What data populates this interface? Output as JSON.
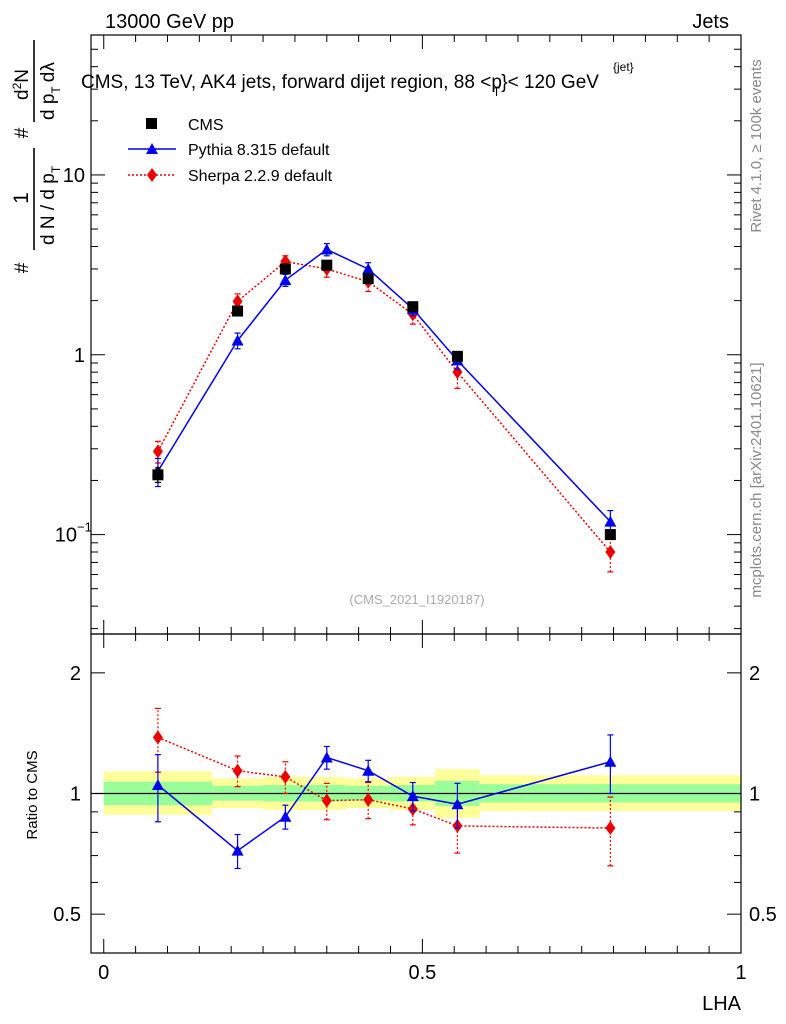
{
  "header": {
    "left": "13000 GeV pp",
    "right": "Jets"
  },
  "side_labels": {
    "rivet": "Rivet 4.1.0, ≥ 100k events",
    "mcplots": "mcplots.cern.ch [arXiv:2401.10621]"
  },
  "chart_data": [
    {
      "type": "line",
      "panel": "main",
      "title": "CMS, 13 TeV, AK4 jets, forward dijet region, 88 < p_T^{jet} < 120 GeV",
      "title_parts": {
        "before": "CMS, 13 TeV, AK4 jets, forward dijet region, 88 <p",
        "sub": "T",
        "sup": "{jet}",
        "after": "}< 120 GeV"
      },
      "ylabel": "1/(dN/dp_T) d²N/(dp_T dλ)",
      "ylabel_parts": {
        "num1": "1",
        "den1": "d N / d p",
        "den1_sub": "T",
        "num2": "d",
        "num2_sup": "2",
        "num2_rest": "N",
        "den2": "d p",
        "den2_sub": "T",
        "den2_rest": "dλ",
        "hash": "#"
      },
      "yscale": "log",
      "ylim": [
        0.028,
        60
      ],
      "xlim": [
        -0.02,
        1.0
      ],
      "ytick_labels": [
        {
          "value": 0.1,
          "base": "10",
          "exp": "−1"
        },
        {
          "value": 1,
          "base": "1",
          "exp": ""
        },
        {
          "value": 10,
          "base": "10",
          "exp": ""
        }
      ],
      "legend": [
        {
          "name": "CMS",
          "marker": "square",
          "color": "#000000",
          "linestyle": "none"
        },
        {
          "name": "Pythia 8.315 default",
          "marker": "triangle",
          "color": "#0000ee",
          "linestyle": "solid"
        },
        {
          "name": "Sherpa 2.2.9 default",
          "marker": "diamond",
          "color": "#ee0000",
          "linestyle": "dotted"
        }
      ],
      "watermark": "(CMS_2021_I1920187)",
      "series": [
        {
          "name": "CMS",
          "x": [
            0.085,
            0.21,
            0.285,
            0.35,
            0.415,
            0.485,
            0.555,
            0.795
          ],
          "y": [
            0.215,
            1.75,
            3.0,
            3.15,
            2.65,
            1.85,
            0.98,
            0.1
          ],
          "err": [
            0.02,
            0.08,
            0.1,
            0.1,
            0.1,
            0.08,
            0.05,
            0.006
          ]
        },
        {
          "name": "Pythia 8.315 default",
          "x": [
            0.085,
            0.21,
            0.285,
            0.35,
            0.415,
            0.485,
            0.555,
            0.795
          ],
          "y": [
            0.225,
            1.2,
            2.6,
            3.85,
            3.0,
            1.8,
            0.93,
            0.118
          ],
          "err": [
            0.04,
            0.12,
            0.2,
            0.3,
            0.25,
            0.15,
            0.1,
            0.018
          ]
        },
        {
          "name": "Sherpa 2.2.9 default",
          "x": [
            0.085,
            0.21,
            0.285,
            0.35,
            0.415,
            0.485,
            0.555,
            0.795
          ],
          "y": [
            0.29,
            1.98,
            3.3,
            3.0,
            2.55,
            1.68,
            0.8,
            0.08
          ],
          "err": [
            0.04,
            0.2,
            0.25,
            0.3,
            0.3,
            0.2,
            0.15,
            0.018
          ]
        }
      ]
    },
    {
      "type": "line",
      "panel": "ratio",
      "ylabel": "Ratio to CMS",
      "xlabel": "LHA",
      "yscale": "log",
      "ylim": [
        0.4,
        2.5
      ],
      "xlim": [
        -0.02,
        1.0
      ],
      "yticks": [
        0.5,
        1,
        2
      ],
      "ytick_labels": [
        "0.5",
        "1",
        "2"
      ],
      "xticks": [
        0,
        0.5,
        1
      ],
      "xtick_labels": [
        "0",
        "0.5",
        "1"
      ],
      "bands": {
        "edges": [
          0.0,
          0.17,
          0.25,
          0.32,
          0.38,
          0.45,
          0.52,
          0.59,
          1.0
        ],
        "green": [
          [
            0.935,
            1.07
          ],
          [
            0.96,
            1.045
          ],
          [
            0.955,
            1.05
          ],
          [
            0.955,
            1.05
          ],
          [
            0.96,
            1.045
          ],
          [
            0.955,
            1.05
          ],
          [
            0.93,
            1.075
          ],
          [
            0.95,
            1.055
          ]
        ],
        "yellow": [
          [
            0.885,
            1.135
          ],
          [
            0.92,
            1.09
          ],
          [
            0.91,
            1.1
          ],
          [
            0.91,
            1.1
          ],
          [
            0.92,
            1.09
          ],
          [
            0.91,
            1.1
          ],
          [
            0.87,
            1.15
          ],
          [
            0.905,
            1.11
          ]
        ],
        "green_color": "#99ff99",
        "yellow_color": "#ffff99"
      },
      "series": [
        {
          "name": "Pythia 8.315 default",
          "x": [
            0.085,
            0.21,
            0.285,
            0.35,
            0.415,
            0.485,
            0.555,
            0.795
          ],
          "y": [
            1.05,
            0.72,
            0.875,
            1.23,
            1.14,
            0.985,
            0.94,
            1.2
          ],
          "err": [
            0.2,
            0.07,
            0.06,
            0.08,
            0.07,
            0.08,
            0.12,
            0.2
          ]
        },
        {
          "name": "Sherpa 2.2.9 default",
          "x": [
            0.085,
            0.21,
            0.285,
            0.35,
            0.415,
            0.485,
            0.555,
            0.795
          ],
          "y": [
            1.38,
            1.14,
            1.1,
            0.96,
            0.965,
            0.915,
            0.83,
            0.82
          ],
          "err": [
            0.25,
            0.1,
            0.1,
            0.1,
            0.1,
            0.08,
            0.12,
            0.16
          ]
        }
      ]
    }
  ]
}
